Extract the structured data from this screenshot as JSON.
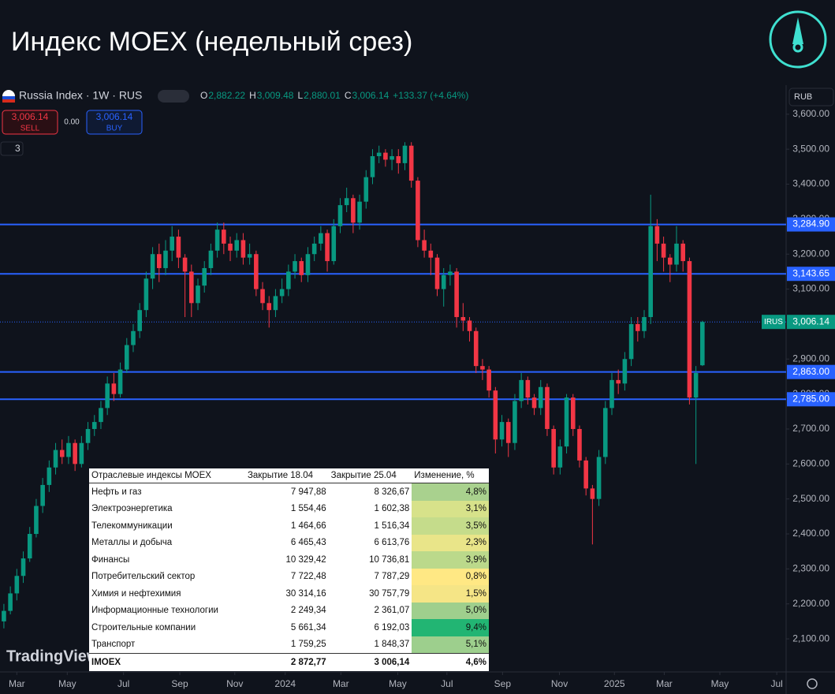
{
  "header": {
    "title": "Индекс MOEX (недельный срез)"
  },
  "chart_data": {
    "type": "candlestick",
    "symbol": "Russia Index · 1W · RUS",
    "quote": {
      "o_label": "O",
      "open": "2,882.22",
      "h_label": "H",
      "high": "3,009.48",
      "l_label": "L",
      "low": "2,880.01",
      "c_label": "C",
      "close": "3,006.14",
      "change": "+133.37 (+4.64%)"
    },
    "trade": {
      "sell_price": "3,006.14",
      "sell": "SELL",
      "spread": "0.00",
      "buy_price": "3,006.14",
      "buy": "BUY",
      "indicators": "3"
    },
    "currency": "RUB",
    "watermark": "TradingView",
    "xlim": [
      -0.6,
      120.7
    ],
    "ylim": [
      2010,
      3683
    ],
    "xticks": [
      {
        "value": 2,
        "label": "Mar"
      },
      {
        "value": 9.8,
        "label": "May"
      },
      {
        "value": 18.5,
        "label": "Jul"
      },
      {
        "value": 27.2,
        "label": "Sep"
      },
      {
        "value": 35.7,
        "label": "Nov"
      },
      {
        "value": 43.5,
        "label": "2024"
      },
      {
        "value": 52.1,
        "label": "Mar"
      },
      {
        "value": 60.9,
        "label": "May"
      },
      {
        "value": 68.5,
        "label": "Jul"
      },
      {
        "value": 77.1,
        "label": "Sep"
      },
      {
        "value": 85.9,
        "label": "Nov"
      },
      {
        "value": 94.4,
        "label": "2025"
      },
      {
        "value": 102.1,
        "label": "Mar"
      },
      {
        "value": 110.7,
        "label": "May"
      },
      {
        "value": 119.5,
        "label": "Jul"
      }
    ],
    "yticks": [
      {
        "value": 2100,
        "label": "2,100.00"
      },
      {
        "value": 2200,
        "label": "2,200.00"
      },
      {
        "value": 2300,
        "label": "2,300.00"
      },
      {
        "value": 2400,
        "label": "2,400.00"
      },
      {
        "value": 2500,
        "label": "2,500.00"
      },
      {
        "value": 2600,
        "label": "2,600.00"
      },
      {
        "value": 2700,
        "label": "2,700.00"
      },
      {
        "value": 2800,
        "label": "2,800.00"
      },
      {
        "value": 2900,
        "label": "2,900.00"
      },
      {
        "value": 3000,
        "label": "3,000.00"
      },
      {
        "value": 3100,
        "label": "3,100.00"
      },
      {
        "value": 3200,
        "label": "3,200.00"
      },
      {
        "value": 3300,
        "label": "3,300.00"
      },
      {
        "value": 3400,
        "label": "3,400.00"
      },
      {
        "value": 3500,
        "label": "3,500.00"
      },
      {
        "value": 3600,
        "label": "3,600.00"
      }
    ],
    "grid": false,
    "up_color": "#089981",
    "down_color": "#f23645",
    "levels": [
      {
        "value": 3284.9,
        "label": "3,284.90"
      },
      {
        "value": 3143.65,
        "label": "3,143.65"
      },
      {
        "value": 2863,
        "label": "2,863.00"
      },
      {
        "value": 2785,
        "label": "2,785.00"
      }
    ],
    "level_color": "#2962ff",
    "last_price": {
      "value": 3006.14,
      "label": "3,006.14",
      "ticker": "IRUS"
    },
    "series": [
      {
        "name": "Russia Index",
        "ohlc": [
          [
            2150,
            2200,
            2130,
            2180
          ],
          [
            2180,
            2250,
            2170,
            2230
          ],
          [
            2230,
            2300,
            2210,
            2280
          ],
          [
            2280,
            2350,
            2260,
            2330
          ],
          [
            2330,
            2420,
            2320,
            2400
          ],
          [
            2400,
            2500,
            2390,
            2480
          ],
          [
            2480,
            2560,
            2460,
            2540
          ],
          [
            2540,
            2610,
            2520,
            2590
          ],
          [
            2590,
            2660,
            2570,
            2640
          ],
          [
            2640,
            2670,
            2600,
            2620
          ],
          [
            2620,
            2680,
            2600,
            2660
          ],
          [
            2660,
            2670,
            2580,
            2600
          ],
          [
            2600,
            2680,
            2590,
            2660
          ],
          [
            2660,
            2720,
            2640,
            2700
          ],
          [
            2700,
            2740,
            2680,
            2720
          ],
          [
            2720,
            2780,
            2700,
            2760
          ],
          [
            2760,
            2850,
            2740,
            2830
          ],
          [
            2830,
            2860,
            2780,
            2800
          ],
          [
            2800,
            2890,
            2790,
            2870
          ],
          [
            2870,
            2960,
            2860,
            2940
          ],
          [
            2940,
            3000,
            2920,
            2980
          ],
          [
            2980,
            3060,
            2960,
            3040
          ],
          [
            3040,
            3150,
            3020,
            3130
          ],
          [
            3130,
            3220,
            3100,
            3200
          ],
          [
            3200,
            3230,
            3120,
            3160
          ],
          [
            3160,
            3240,
            3140,
            3210
          ],
          [
            3210,
            3280,
            3180,
            3250
          ],
          [
            3250,
            3270,
            3160,
            3190
          ],
          [
            3190,
            3200,
            3020,
            3150
          ],
          [
            3150,
            3170,
            3020,
            3060
          ],
          [
            3060,
            3130,
            3040,
            3110
          ],
          [
            3110,
            3180,
            3090,
            3160
          ],
          [
            3160,
            3230,
            3140,
            3210
          ],
          [
            3210,
            3290,
            3190,
            3270
          ],
          [
            3270,
            3290,
            3200,
            3230
          ],
          [
            3230,
            3250,
            3180,
            3210
          ],
          [
            3210,
            3260,
            3190,
            3240
          ],
          [
            3240,
            3260,
            3170,
            3190
          ],
          [
            3190,
            3230,
            3170,
            3200
          ],
          [
            3200,
            3210,
            3080,
            3100
          ],
          [
            3100,
            3120,
            3040,
            3060
          ],
          [
            3060,
            3080,
            2990,
            3040
          ],
          [
            3040,
            3100,
            3020,
            3080
          ],
          [
            3080,
            3130,
            3060,
            3100
          ],
          [
            3100,
            3170,
            3080,
            3150
          ],
          [
            3150,
            3200,
            3130,
            3180
          ],
          [
            3180,
            3190,
            3120,
            3140
          ],
          [
            3140,
            3220,
            3120,
            3200
          ],
          [
            3200,
            3250,
            3180,
            3230
          ],
          [
            3230,
            3280,
            3210,
            3260
          ],
          [
            3260,
            3270,
            3150,
            3180
          ],
          [
            3180,
            3300,
            3170,
            3280
          ],
          [
            3280,
            3360,
            3260,
            3340
          ],
          [
            3340,
            3390,
            3320,
            3360
          ],
          [
            3360,
            3370,
            3260,
            3290
          ],
          [
            3290,
            3370,
            3270,
            3350
          ],
          [
            3350,
            3440,
            3330,
            3420
          ],
          [
            3420,
            3500,
            3400,
            3480
          ],
          [
            3480,
            3510,
            3460,
            3490
          ],
          [
            3490,
            3500,
            3450,
            3470
          ],
          [
            3470,
            3500,
            3440,
            3480
          ],
          [
            3480,
            3500,
            3430,
            3460
          ],
          [
            3460,
            3520,
            3440,
            3510
          ],
          [
            3510,
            3520,
            3390,
            3410
          ],
          [
            3410,
            3420,
            3220,
            3240
          ],
          [
            3240,
            3270,
            3190,
            3210
          ],
          [
            3210,
            3230,
            3140,
            3190
          ],
          [
            3190,
            3200,
            3080,
            3100
          ],
          [
            3100,
            3160,
            3050,
            3140
          ],
          [
            3140,
            3170,
            3110,
            3150
          ],
          [
            3150,
            3160,
            2990,
            3020
          ],
          [
            3020,
            3060,
            2980,
            3010
          ],
          [
            3010,
            3020,
            2950,
            2980
          ],
          [
            2980,
            2990,
            2860,
            2880
          ],
          [
            2880,
            2900,
            2840,
            2870
          ],
          [
            2870,
            2880,
            2790,
            2810
          ],
          [
            2810,
            2820,
            2630,
            2670
          ],
          [
            2670,
            2740,
            2650,
            2720
          ],
          [
            2720,
            2730,
            2620,
            2660
          ],
          [
            2660,
            2800,
            2640,
            2780
          ],
          [
            2780,
            2860,
            2760,
            2840
          ],
          [
            2840,
            2850,
            2770,
            2790
          ],
          [
            2790,
            2800,
            2740,
            2760
          ],
          [
            2760,
            2840,
            2740,
            2820
          ],
          [
            2820,
            2830,
            2680,
            2700
          ],
          [
            2700,
            2710,
            2570,
            2590
          ],
          [
            2590,
            2670,
            2570,
            2650
          ],
          [
            2650,
            2800,
            2630,
            2790
          ],
          [
            2790,
            2800,
            2680,
            2700
          ],
          [
            2700,
            2710,
            2590,
            2610
          ],
          [
            2610,
            2620,
            2510,
            2530
          ],
          [
            2530,
            2540,
            2370,
            2500
          ],
          [
            2500,
            2640,
            2480,
            2620
          ],
          [
            2620,
            2780,
            2600,
            2760
          ],
          [
            2760,
            2860,
            2740,
            2840
          ],
          [
            2840,
            2870,
            2800,
            2830
          ],
          [
            2830,
            2920,
            2810,
            2900
          ],
          [
            2900,
            3020,
            2880,
            3000
          ],
          [
            3000,
            3020,
            2950,
            2980
          ],
          [
            2980,
            3040,
            2960,
            3020
          ],
          [
            3020,
            3370,
            3000,
            3280
          ],
          [
            3280,
            3300,
            3180,
            3230
          ],
          [
            3230,
            3250,
            3150,
            3190
          ],
          [
            3190,
            3200,
            3120,
            3170
          ],
          [
            3170,
            3280,
            3150,
            3230
          ],
          [
            3230,
            3240,
            3150,
            3180
          ],
          [
            3180,
            3190,
            2770,
            2790
          ],
          [
            2790,
            2880,
            2600,
            2860
          ],
          [
            2882.22,
            3009.48,
            2880.01,
            3006.14
          ]
        ]
      }
    ]
  },
  "table": {
    "header": [
      "Отраслевые индексы MOEX",
      "Закрытие 18.04",
      "Закрытие 25.04",
      "Изменение, %"
    ],
    "rows": [
      [
        "Нефть и газ",
        "7 947,88",
        "8 326,67",
        "4,8%"
      ],
      [
        "Электроэнергетика",
        "1 554,46",
        "1 602,38",
        "3,1%"
      ],
      [
        "Телекоммуникации",
        "1 464,66",
        "1 516,34",
        "3,5%"
      ],
      [
        "Металлы и добыча",
        "6 465,43",
        "6 613,76",
        "2,3%"
      ],
      [
        "Финансы",
        "10 329,42",
        "10 736,81",
        "3,9%"
      ],
      [
        "Потребительский сектор",
        "7 722,48",
        "7 787,29",
        "0,8%"
      ],
      [
        "Химия и нефтехимия",
        "30 314,16",
        "30 757,79",
        "1,5%"
      ],
      [
        "Информационные технологии",
        "2 249,34",
        "2 361,07",
        "5,0%"
      ],
      [
        "Строительные компании",
        "5 661,34",
        "6 192,03",
        "9,4%"
      ],
      [
        "Транспорт",
        "1 759,25",
        "1 848,37",
        "5,1%"
      ]
    ],
    "row_colors": [
      "#a9d18e",
      "#d7e28a",
      "#c5dc8b",
      "#e9e589",
      "#bbd98b",
      "#ffe884",
      "#f5e586",
      "#9fcf8d",
      "#22b573",
      "#9dcf8d"
    ],
    "total": [
      "IMOEX",
      "2 872,77",
      "3 006,14",
      "4,6%"
    ]
  }
}
